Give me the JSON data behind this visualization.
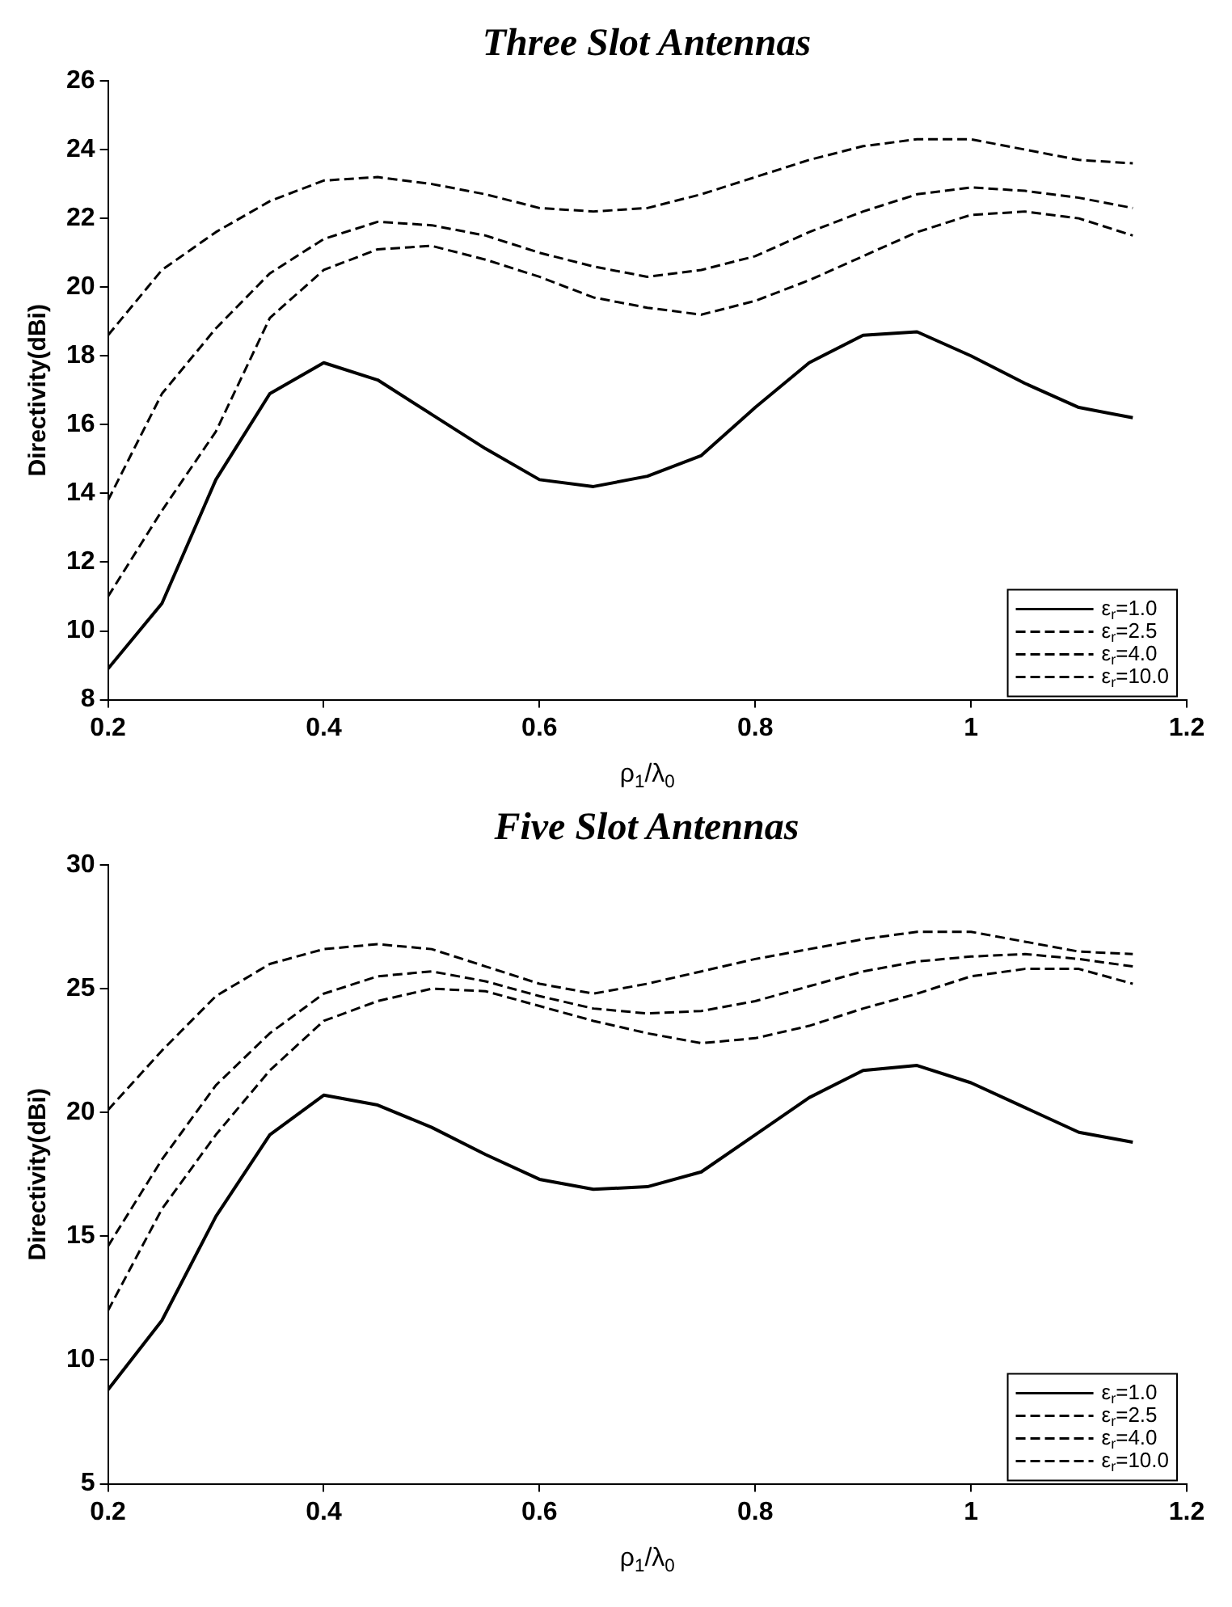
{
  "chart_data": [
    {
      "type": "line",
      "title": "Three Slot Antennas",
      "xlabel": "ρ$_{1}$/λ$_{0}$",
      "ylabel": "Directivity(dBi)",
      "x": [
        0.2,
        0.25,
        0.3,
        0.35,
        0.4,
        0.45,
        0.5,
        0.55,
        0.6,
        0.65,
        0.7,
        0.75,
        0.8,
        0.85,
        0.9,
        0.95,
        1.0,
        1.05,
        1.1,
        1.15
      ],
      "xlim": [
        0.2,
        1.2
      ],
      "xticks": [
        0.2,
        0.4,
        0.6,
        0.8,
        1,
        1.2
      ],
      "ylim": [
        8,
        26
      ],
      "yticks": [
        8,
        10,
        12,
        14,
        16,
        18,
        20,
        22,
        24,
        26
      ],
      "legend": "bottom right",
      "marker": "none",
      "series": [
        {
          "name": "ε$_{r}$=1.0",
          "color": "#000000",
          "line_style": "solid",
          "values": [
            8.9,
            10.8,
            14.4,
            16.9,
            17.8,
            17.3,
            16.3,
            15.3,
            14.4,
            14.2,
            14.5,
            15.1,
            16.5,
            17.8,
            18.6,
            18.7,
            18.0,
            17.2,
            16.5,
            16.2
          ]
        },
        {
          "name": "ε$_{r}$=2.5",
          "color": "#000000",
          "line_style": "dashed",
          "values": [
            11.0,
            13.5,
            15.8,
            19.1,
            20.5,
            21.1,
            21.2,
            20.8,
            20.3,
            19.7,
            19.4,
            19.2,
            19.6,
            20.2,
            20.9,
            21.6,
            22.1,
            22.2,
            22.0,
            21.5
          ]
        },
        {
          "name": "ε$_{r}$=4.0",
          "color": "#000000",
          "line_style": "dashed",
          "values": [
            13.8,
            16.9,
            18.8,
            20.4,
            21.4,
            21.9,
            21.8,
            21.5,
            21.0,
            20.6,
            20.3,
            20.5,
            20.9,
            21.6,
            22.2,
            22.7,
            22.9,
            22.8,
            22.6,
            22.3
          ]
        },
        {
          "name": "ε$_{r}$=10.0",
          "color": "#000000",
          "line_style": "dashed",
          "values": [
            18.6,
            20.5,
            21.6,
            22.5,
            23.1,
            23.2,
            23.0,
            22.7,
            22.3,
            22.2,
            22.3,
            22.7,
            23.2,
            23.7,
            24.1,
            24.3,
            24.3,
            24.0,
            23.7,
            23.6
          ]
        }
      ]
    },
    {
      "type": "line",
      "title": "Five Slot Antennas",
      "xlabel": "ρ$_{1}$/λ$_{0}$",
      "ylabel": "Directivity(dBi)",
      "x": [
        0.2,
        0.25,
        0.3,
        0.35,
        0.4,
        0.45,
        0.5,
        0.55,
        0.6,
        0.65,
        0.7,
        0.75,
        0.8,
        0.85,
        0.9,
        0.95,
        1.0,
        1.05,
        1.1,
        1.15
      ],
      "xlim": [
        0.2,
        1.2
      ],
      "xticks": [
        0.2,
        0.4,
        0.6,
        0.8,
        1,
        1.2
      ],
      "ylim": [
        5,
        30
      ],
      "yticks": [
        5,
        10,
        15,
        20,
        25,
        30
      ],
      "legend": "bottom right",
      "marker": "none",
      "series": [
        {
          "name": "ε$_{r}$=1.0",
          "color": "#000000",
          "line_style": "solid",
          "values": [
            8.8,
            11.6,
            15.8,
            19.1,
            20.7,
            20.3,
            19.4,
            18.3,
            17.3,
            16.9,
            17.0,
            17.6,
            19.1,
            20.6,
            21.7,
            21.9,
            21.2,
            20.2,
            19.2,
            18.8
          ]
        },
        {
          "name": "ε$_{r}$=2.5",
          "color": "#000000",
          "line_style": "dashed",
          "values": [
            12.0,
            16.1,
            19.1,
            21.7,
            23.7,
            24.5,
            25.0,
            24.9,
            24.3,
            23.7,
            23.2,
            22.8,
            23.0,
            23.5,
            24.2,
            24.8,
            25.5,
            25.8,
            25.8,
            25.2
          ]
        },
        {
          "name": "ε$_{r}$=4.0",
          "color": "#000000",
          "line_style": "dashed",
          "values": [
            14.6,
            18.1,
            21.1,
            23.2,
            24.8,
            25.5,
            25.7,
            25.3,
            24.7,
            24.2,
            24.0,
            24.1,
            24.5,
            25.1,
            25.7,
            26.1,
            26.3,
            26.4,
            26.2,
            25.9
          ]
        },
        {
          "name": "ε$_{r}$=10.0",
          "color": "#000000",
          "line_style": "dashed",
          "values": [
            20.1,
            22.5,
            24.7,
            26.0,
            26.6,
            26.8,
            26.6,
            25.9,
            25.2,
            24.8,
            25.2,
            25.7,
            26.2,
            26.6,
            27.0,
            27.3,
            27.3,
            26.9,
            26.5,
            26.4
          ]
        }
      ]
    }
  ]
}
